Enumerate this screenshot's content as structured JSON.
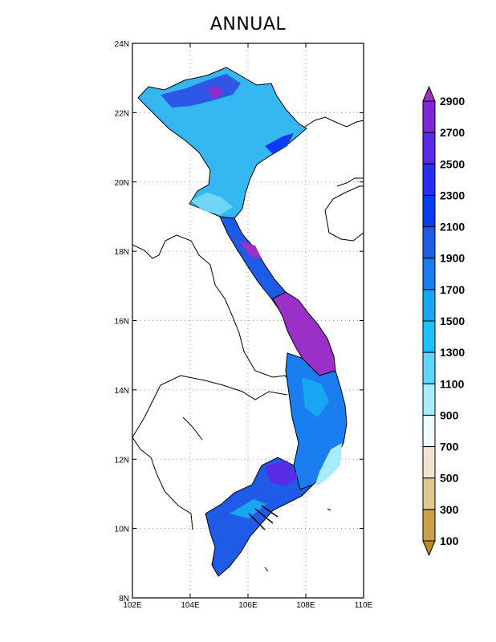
{
  "title": "ANNUAL",
  "map": {
    "lon_labels": [
      "102E",
      "104E",
      "106E",
      "108E",
      "110E"
    ],
    "lat_labels": [
      "8N",
      "10N",
      "12N",
      "14N",
      "16N",
      "18N",
      "20N",
      "22N",
      "24N"
    ],
    "lon_range": [
      102,
      110
    ],
    "lat_range": [
      8,
      24
    ],
    "grid": true,
    "grid_style": "dotted"
  },
  "colorbar": {
    "levels": [
      "2900",
      "2700",
      "2500",
      "2300",
      "2100",
      "1900",
      "1700",
      "1500",
      "1300",
      "1100",
      "900",
      "700",
      "500",
      "300",
      "100"
    ],
    "colors": [
      "#9b30c8",
      "#7a28d8",
      "#5a2be6",
      "#2a2df2",
      "#0a3cf0",
      "#1e5ce8",
      "#1b7ef0",
      "#17a6f2",
      "#1ec1f5",
      "#5ed6f7",
      "#a8ecfb",
      "#eefcfd",
      "#f1e5cf",
      "#dec793",
      "#c9a04b",
      "#b98a1e"
    ]
  },
  "regions": {
    "north": "blue/cyan",
    "central_coast": "purple",
    "south_central": "blue",
    "far_south": "blue"
  }
}
